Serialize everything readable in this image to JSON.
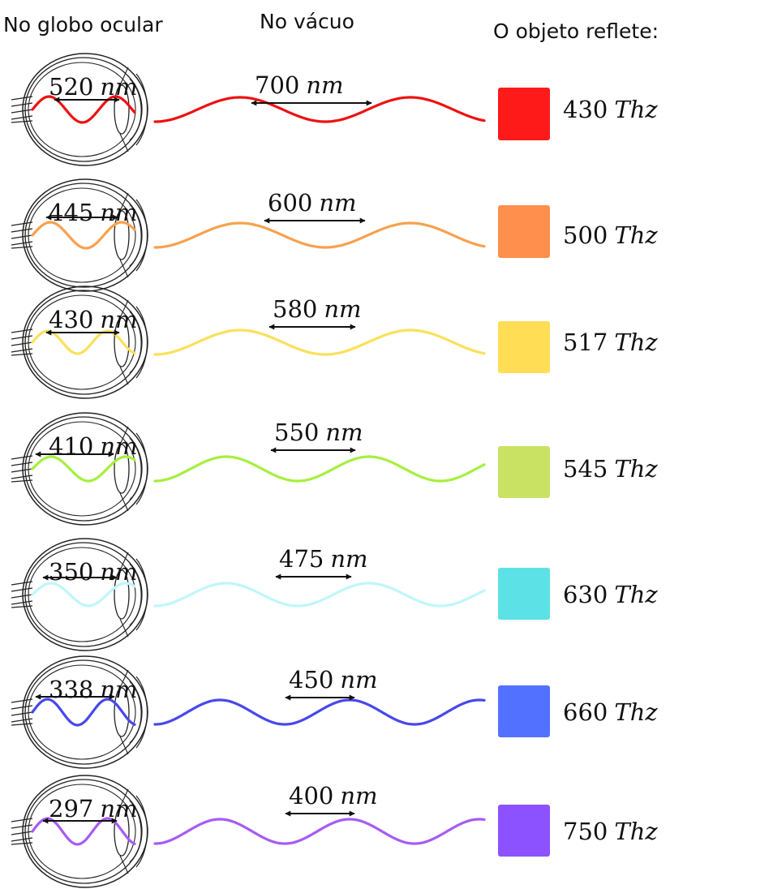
{
  "headers": {
    "eye": "No globo ocular",
    "vacuum": "No vácuo",
    "object": "O objeto reflete:"
  },
  "rows": [
    {
      "eye_value": "520",
      "eye_unit": "nm",
      "vacuum_value": "700",
      "vacuum_unit": "nm",
      "freq_value": "430",
      "freq_unit": "Thz",
      "color": "#ee1111",
      "swatch": "#ff1a1a"
    },
    {
      "eye_value": "445",
      "eye_unit": "nm",
      "vacuum_value": "600",
      "vacuum_unit": "nm",
      "freq_value": "500",
      "freq_unit": "Thz",
      "color": "#f7a14e",
      "swatch": "#ff8f4c"
    },
    {
      "eye_value": "430",
      "eye_unit": "nm",
      "vacuum_value": "580",
      "vacuum_unit": "nm",
      "freq_value": "517",
      "freq_unit": "Thz",
      "color": "#fbe05a",
      "swatch": "#ffdd55"
    },
    {
      "eye_value": "410",
      "eye_unit": "nm",
      "vacuum_value": "550",
      "vacuum_unit": "nm",
      "freq_value": "545",
      "freq_unit": "Thz",
      "color": "#a6ef3e",
      "swatch": "#c9e264"
    },
    {
      "eye_value": "350",
      "eye_unit": "nm",
      "vacuum_value": "475",
      "vacuum_unit": "nm",
      "freq_value": "630",
      "freq_unit": "Thz",
      "color": "#bff6fa",
      "swatch": "#5ce2e6"
    },
    {
      "eye_value": "338",
      "eye_unit": "nm",
      "vacuum_value": "450",
      "vacuum_unit": "nm",
      "freq_value": "660",
      "freq_unit": "Thz",
      "color": "#4848ec",
      "swatch": "#5271ff"
    },
    {
      "eye_value": "297",
      "eye_unit": "nm",
      "vacuum_value": "400",
      "vacuum_unit": "nm",
      "freq_value": "750",
      "freq_unit": "Thz",
      "color": "#a65cf2",
      "swatch": "#8c52ff"
    }
  ]
}
